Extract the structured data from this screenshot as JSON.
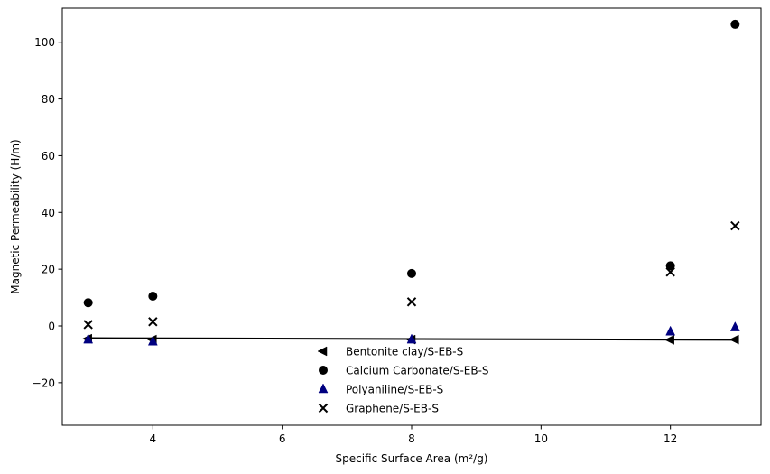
{
  "chart_data": {
    "type": "scatter",
    "title": "",
    "xlabel": "Specific Surface Area (m²/g)",
    "ylabel": "Magnetic Permeability (H/m)",
    "xlim": [
      2.6,
      13.4
    ],
    "ylim": [
      -35,
      112
    ],
    "x_ticks": [
      4,
      6,
      8,
      10,
      12
    ],
    "y_ticks": [
      -20,
      0,
      20,
      40,
      60,
      80,
      100
    ],
    "grid": false,
    "legend_position": "lower-center",
    "series": [
      {
        "name": "Bentonite clay/S-EB-S",
        "marker": "triangle-left",
        "color": "#000000",
        "x": [
          3,
          4,
          8,
          12,
          13
        ],
        "y": [
          -4.5,
          -4.8,
          -4.8,
          -4.9,
          -4.8
        ]
      },
      {
        "name": "Calcium Carbonate/S-EB-S",
        "marker": "circle",
        "color": "#000000",
        "x": [
          3,
          4,
          8,
          12,
          13
        ],
        "y": [
          8.2,
          10.5,
          18.5,
          21.2,
          106.3
        ]
      },
      {
        "name": "Polyaniline/S-EB-S",
        "marker": "triangle-up",
        "color": "#000080",
        "x": [
          3,
          4,
          8,
          12,
          13
        ],
        "y": [
          -4.8,
          -5.5,
          -4.8,
          -2,
          -0.5
        ]
      },
      {
        "name": "Graphene/S-EB-S",
        "marker": "x",
        "color": "#000000",
        "x": [
          3,
          4,
          8,
          12,
          13
        ],
        "y": [
          0.5,
          1.5,
          8.5,
          19,
          35.3
        ]
      }
    ],
    "fit_line": {
      "color": "#000000",
      "x": [
        3,
        13
      ],
      "y": [
        -4.3,
        -4.9
      ]
    }
  }
}
